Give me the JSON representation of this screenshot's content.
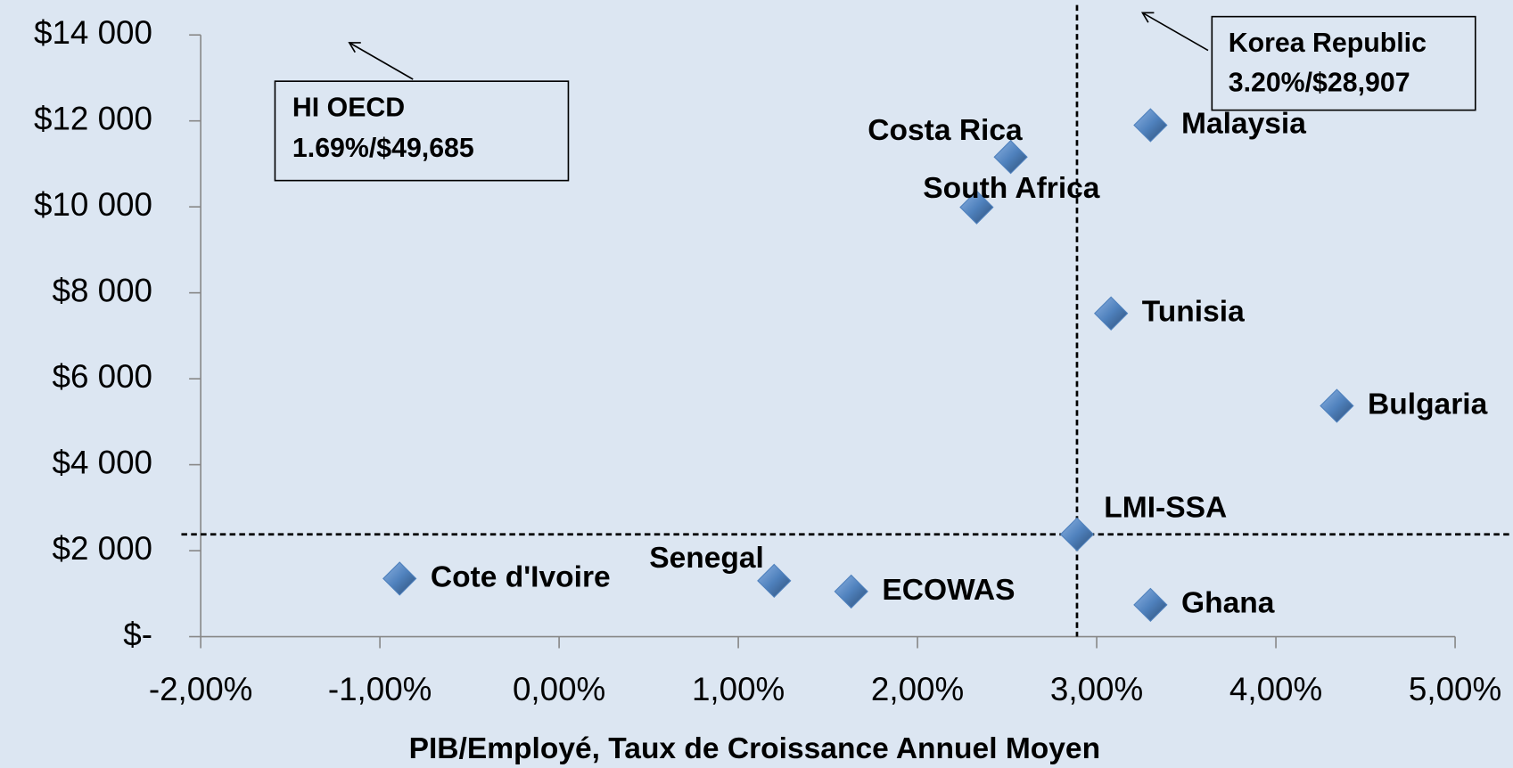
{
  "chart_data": {
    "type": "scatter",
    "x_label": "PIB/Employé, Taux de Croissance Annuel Moyen",
    "labels": [
      "Cote d'Ivoire",
      "Senegal",
      "ECOWAS",
      "LMI-SSA",
      "Ghana",
      "Bulgaria",
      "Tunisia",
      "South Africa",
      "Costa Rica",
      "Malaysia"
    ],
    "x": [
      -0.89,
      1.2,
      1.63,
      2.89,
      3.3,
      4.34,
      3.08,
      2.33,
      2.52,
      3.3
    ],
    "values": [
      1350,
      1300,
      1050,
      2380,
      740,
      5370,
      7520,
      9990,
      11160,
      11900
    ],
    "color": "#4f81bd",
    "xlim": [
      -2,
      5
    ],
    "xticks": [
      {
        "value": -2,
        "label": "-2,00%"
      },
      {
        "value": -1,
        "label": "-1,00%"
      },
      {
        "value": 0,
        "label": "0,00%"
      },
      {
        "value": 1,
        "label": "1,00%"
      },
      {
        "value": 2,
        "label": "2,00%"
      },
      {
        "value": 3,
        "label": "3,00%"
      },
      {
        "value": 4,
        "label": "4,00%"
      },
      {
        "value": 5,
        "label": "5,00%"
      }
    ],
    "ylim": [
      0,
      14000
    ],
    "yticks": [
      {
        "value": 0,
        "label": "$-"
      },
      {
        "value": 2000,
        "label": "$2 000"
      },
      {
        "value": 4000,
        "label": "$4 000"
      },
      {
        "value": 6000,
        "label": "$6 000"
      },
      {
        "value": 8000,
        "label": "$8 000"
      },
      {
        "value": 10000,
        "label": "$10 000"
      },
      {
        "value": 12000,
        "label": "$12 000"
      },
      {
        "value": 14000,
        "label": "$14 000"
      }
    ],
    "reference_x": 2.89,
    "reference_y": 2380,
    "annotations": [
      {
        "lines": [
          "HI OECD",
          "1.69%/$49,685"
        ]
      },
      {
        "lines": [
          "Korea Republic",
          "3.20%/$28,907"
        ]
      }
    ]
  }
}
